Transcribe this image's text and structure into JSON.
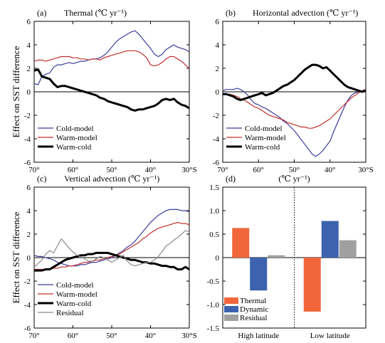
{
  "ylabel": "Effect on SST difference",
  "chart_data": [
    {
      "type": "line",
      "panel": "(a)",
      "title": "Thermal (℃ yr⁻¹)",
      "xlim": [
        70,
        30
      ],
      "ylim": [
        -6,
        6
      ],
      "yticks": [
        -6,
        -4,
        -2,
        0,
        2,
        4,
        6
      ],
      "xticks": [
        70,
        60,
        50,
        40,
        30
      ],
      "xticklabels": [
        "70°",
        "60°",
        "50°",
        "40°",
        "30°S"
      ],
      "legend_position": "lower-left",
      "series": [
        {
          "name": "Cold-model",
          "color": "#3b3b9a",
          "width": 1.2,
          "x": [
            70,
            69,
            68,
            67,
            66,
            65,
            64,
            63,
            62,
            61,
            60,
            59,
            58,
            57,
            56,
            55,
            54,
            53,
            52,
            51,
            50,
            49,
            48,
            47,
            46,
            45,
            44,
            43,
            42,
            41,
            40,
            39,
            38,
            37,
            36,
            35,
            34,
            33,
            32,
            31,
            30
          ],
          "y": [
            0.7,
            0.6,
            1.3,
            1.5,
            1.6,
            2.1,
            2.3,
            2.3,
            2.4,
            2.5,
            2.4,
            2.5,
            2.6,
            2.6,
            2.7,
            2.8,
            2.8,
            2.9,
            3.1,
            3.4,
            3.8,
            4.2,
            4.5,
            4.7,
            4.9,
            5.1,
            5.2,
            4.9,
            4.5,
            4.1,
            3.7,
            3.2,
            3.0,
            3.2,
            3.6,
            3.8,
            4.0,
            3.8,
            3.7,
            3.6,
            3.4
          ]
        },
        {
          "name": "Warm-model",
          "color": "#c0302b",
          "width": 1.2,
          "x": [
            70,
            69,
            68,
            67,
            66,
            65,
            64,
            63,
            62,
            61,
            60,
            59,
            58,
            57,
            56,
            55,
            54,
            53,
            52,
            51,
            50,
            49,
            48,
            47,
            46,
            45,
            44,
            43,
            42,
            41,
            40,
            39,
            38,
            37,
            36,
            35,
            34,
            33,
            32,
            31,
            30
          ],
          "y": [
            2.6,
            2.7,
            2.7,
            2.6,
            2.7,
            2.8,
            2.9,
            3.0,
            3.0,
            3.0,
            2.9,
            2.9,
            2.8,
            2.8,
            2.7,
            2.8,
            2.8,
            2.7,
            2.9,
            3.0,
            3.1,
            3.2,
            3.3,
            3.4,
            3.5,
            3.5,
            3.5,
            3.4,
            3.2,
            2.9,
            2.3,
            2.2,
            2.3,
            2.5,
            2.8,
            3.0,
            3.0,
            2.8,
            2.6,
            2.3,
            2.0
          ]
        },
        {
          "name": "Warm-cold",
          "color": "#000000",
          "width": 3,
          "x": [
            70,
            69,
            68,
            67,
            66,
            65,
            64,
            63,
            62,
            61,
            60,
            59,
            58,
            57,
            56,
            55,
            54,
            53,
            52,
            51,
            50,
            49,
            48,
            47,
            46,
            45,
            44,
            43,
            42,
            41,
            40,
            39,
            38,
            37,
            36,
            35,
            34,
            33,
            32,
            31,
            30
          ],
          "y": [
            1.8,
            1.9,
            1.3,
            1.2,
            1.1,
            0.7,
            0.4,
            0.5,
            0.5,
            0.4,
            0.3,
            0.2,
            0.1,
            0.0,
            -0.1,
            -0.2,
            -0.3,
            -0.5,
            -0.6,
            -0.8,
            -0.9,
            -1.0,
            -1.1,
            -1.2,
            -1.3,
            -1.5,
            -1.6,
            -1.5,
            -1.5,
            -1.4,
            -1.3,
            -1.2,
            -1.0,
            -0.7,
            -0.6,
            -0.7,
            -0.6,
            -0.9,
            -1.1,
            -1.2,
            -1.4
          ]
        }
      ]
    },
    {
      "type": "line",
      "panel": "(b)",
      "title": "Horizontal advection (℃ yr⁻¹)",
      "xlim": [
        70,
        30
      ],
      "ylim": [
        -6,
        6
      ],
      "yticks": [
        -6,
        -4,
        -2,
        0,
        2,
        4,
        6
      ],
      "xticks": [
        70,
        60,
        50,
        40,
        30
      ],
      "xticklabels": [
        "70°",
        "60°",
        "50°",
        "40°",
        "30°S"
      ],
      "legend_position": "lower-left",
      "series": [
        {
          "name": "Cold-model",
          "color": "#3b3b9a",
          "width": 1.2,
          "x": [
            70,
            69,
            68,
            67,
            66,
            65,
            64,
            63,
            62,
            61,
            60,
            59,
            58,
            57,
            56,
            55,
            54,
            53,
            52,
            51,
            50,
            49,
            48,
            47,
            46,
            45,
            44,
            43,
            42,
            41,
            40,
            39,
            38,
            37,
            36,
            35,
            34,
            33,
            32,
            31,
            30
          ],
          "y": [
            0.1,
            0.2,
            0.2,
            0.2,
            0.3,
            0.2,
            0.0,
            -0.3,
            -0.7,
            -1.0,
            -1.1,
            -1.3,
            -1.4,
            -1.6,
            -1.8,
            -2.0,
            -2.2,
            -2.5,
            -2.7,
            -3.0,
            -3.3,
            -3.7,
            -4.1,
            -4.5,
            -4.9,
            -5.3,
            -5.5,
            -5.3,
            -5.0,
            -4.6,
            -4.2,
            -3.4,
            -2.7,
            -2.0,
            -1.3,
            -0.7,
            -0.3,
            -0.1,
            0.0,
            0.1,
            0.2
          ]
        },
        {
          "name": "Warm-model",
          "color": "#c0302b",
          "width": 1.2,
          "x": [
            70,
            69,
            68,
            67,
            66,
            65,
            64,
            63,
            62,
            61,
            60,
            59,
            58,
            57,
            56,
            55,
            54,
            53,
            52,
            51,
            50,
            49,
            48,
            47,
            46,
            45,
            44,
            43,
            42,
            41,
            40,
            39,
            38,
            37,
            36,
            35,
            34,
            33,
            32,
            31,
            30
          ],
          "y": [
            -0.2,
            -0.2,
            -0.2,
            -0.3,
            -0.4,
            -0.6,
            -0.7,
            -0.9,
            -1.1,
            -1.3,
            -1.4,
            -1.6,
            -1.8,
            -2.0,
            -2.1,
            -2.2,
            -2.3,
            -2.4,
            -2.6,
            -2.7,
            -2.8,
            -2.9,
            -3.0,
            -3.0,
            -3.1,
            -3.1,
            -3.0,
            -2.9,
            -2.7,
            -2.5,
            -2.3,
            -2.0,
            -1.7,
            -1.4,
            -1.1,
            -0.8,
            -0.5,
            -0.3,
            -0.1,
            0.1,
            0.2
          ]
        },
        {
          "name": "Warm-cold",
          "color": "#000000",
          "width": 3,
          "x": [
            70,
            69,
            68,
            67,
            66,
            65,
            64,
            63,
            62,
            61,
            60,
            59,
            58,
            57,
            56,
            55,
            54,
            53,
            52,
            51,
            50,
            49,
            48,
            47,
            46,
            45,
            44,
            43,
            42,
            41,
            40,
            39,
            38,
            37,
            36,
            35,
            34,
            33,
            32,
            31,
            30
          ],
          "y": [
            -0.2,
            -0.2,
            -0.3,
            -0.4,
            -0.6,
            -0.7,
            -0.6,
            -0.5,
            -0.4,
            -0.3,
            -0.2,
            -0.1,
            -0.3,
            -0.2,
            -0.1,
            0.1,
            0.3,
            0.5,
            0.6,
            0.8,
            1.0,
            1.3,
            1.6,
            1.9,
            2.1,
            2.3,
            2.3,
            2.2,
            2.0,
            2.1,
            1.8,
            1.5,
            1.2,
            0.9,
            0.6,
            0.4,
            0.3,
            0.2,
            0.1,
            0.0,
            0.1
          ]
        }
      ]
    },
    {
      "type": "line",
      "panel": "(c)",
      "title": "Vertical advection (℃ yr⁻¹)",
      "xlim": [
        70,
        30
      ],
      "ylim": [
        -6,
        6
      ],
      "yticks": [
        -6,
        -4,
        -2,
        0,
        2,
        4,
        6
      ],
      "xticks": [
        70,
        60,
        50,
        40,
        30
      ],
      "xticklabels": [
        "70°",
        "60°",
        "50°",
        "40°",
        "30°S"
      ],
      "legend_position": "lower-left",
      "series": [
        {
          "name": "Cold-model",
          "color": "#3b3b9a",
          "width": 1.2,
          "x": [
            70,
            69,
            68,
            67,
            66,
            65,
            64,
            63,
            62,
            61,
            60,
            59,
            58,
            57,
            56,
            55,
            54,
            53,
            52,
            51,
            50,
            49,
            48,
            47,
            46,
            45,
            44,
            43,
            42,
            41,
            40,
            39,
            38,
            37,
            36,
            35,
            34,
            33,
            32,
            31,
            30
          ],
          "y": [
            0.2,
            0.1,
            0.1,
            0.0,
            -0.1,
            -0.2,
            -0.4,
            -0.5,
            -0.6,
            -0.7,
            -0.7,
            -0.7,
            -0.6,
            -0.6,
            -0.5,
            -0.4,
            -0.4,
            -0.3,
            -0.2,
            -0.1,
            0.0,
            0.2,
            0.4,
            0.6,
            0.9,
            1.1,
            1.4,
            1.8,
            2.2,
            2.6,
            3.0,
            3.3,
            3.6,
            3.8,
            4.0,
            4.1,
            4.1,
            4.1,
            4.0,
            4.0,
            3.9
          ]
        },
        {
          "name": "Warm-model",
          "color": "#c0302b",
          "width": 1.2,
          "x": [
            70,
            69,
            68,
            67,
            66,
            65,
            64,
            63,
            62,
            61,
            60,
            59,
            58,
            57,
            56,
            55,
            54,
            53,
            52,
            51,
            50,
            49,
            48,
            47,
            46,
            45,
            44,
            43,
            42,
            41,
            40,
            39,
            38,
            37,
            36,
            35,
            34,
            33,
            32,
            31,
            30
          ],
          "y": [
            -1.0,
            -1.0,
            -1.0,
            -1.0,
            -1.0,
            -0.9,
            -0.9,
            -0.8,
            -0.8,
            -0.7,
            -0.7,
            -0.6,
            -0.5,
            -0.4,
            -0.4,
            -0.3,
            -0.2,
            -0.2,
            -0.1,
            0.0,
            0.1,
            0.2,
            0.3,
            0.5,
            0.7,
            0.9,
            1.1,
            1.3,
            1.6,
            1.8,
            2.1,
            2.3,
            2.5,
            2.6,
            2.7,
            2.8,
            2.9,
            3.0,
            2.9,
            2.9,
            2.8
          ]
        },
        {
          "name": "Warm-cold",
          "color": "#000000",
          "width": 3,
          "x": [
            70,
            69,
            68,
            67,
            66,
            65,
            64,
            63,
            62,
            61,
            60,
            59,
            58,
            57,
            56,
            55,
            54,
            53,
            52,
            51,
            50,
            49,
            48,
            47,
            46,
            45,
            44,
            43,
            42,
            41,
            40,
            39,
            38,
            37,
            36,
            35,
            34,
            33,
            32,
            31,
            30
          ],
          "y": [
            -1.1,
            -1.1,
            -1.1,
            -1.0,
            -1.0,
            -0.8,
            -0.6,
            -0.4,
            -0.2,
            -0.1,
            0.0,
            0.1,
            0.2,
            0.2,
            0.3,
            0.3,
            0.4,
            0.4,
            0.4,
            0.4,
            0.3,
            0.2,
            0.1,
            0.0,
            -0.1,
            -0.2,
            -0.2,
            -0.3,
            -0.4,
            -0.4,
            -0.5,
            -0.5,
            -0.6,
            -0.7,
            -0.7,
            -0.8,
            -0.8,
            -1.0,
            -1.0,
            -0.8,
            -1.0
          ]
        },
        {
          "name": "Residual",
          "color": "#8a8a8a",
          "width": 1.2,
          "x": [
            70,
            69,
            68,
            67,
            66,
            65,
            64,
            63,
            62,
            61,
            60,
            59,
            58,
            57,
            56,
            55,
            54,
            53,
            52,
            51,
            50,
            49,
            48,
            47,
            46,
            45,
            44,
            43,
            42,
            41,
            40,
            39,
            38,
            37,
            36,
            35,
            34,
            33,
            32,
            31,
            30
          ],
          "y": [
            -0.8,
            -0.5,
            -0.2,
            0.3,
            0.6,
            0.4,
            1.0,
            1.6,
            1.2,
            0.8,
            0.5,
            0.2,
            0.1,
            -0.1,
            -0.3,
            -0.3,
            -0.1,
            0.1,
            0.0,
            -0.2,
            -0.4,
            -0.2,
            0.0,
            0.2,
            -0.3,
            -0.6,
            -0.7,
            -0.6,
            -0.5,
            -0.4,
            -0.4,
            -0.2,
            0.1,
            0.5,
            1.0,
            1.2,
            1.5,
            1.7,
            2.0,
            2.3,
            2.2
          ]
        }
      ]
    },
    {
      "type": "bar",
      "panel": "(d)",
      "title": "(℃ yr⁻¹)",
      "ylim": [
        -1.5,
        1.5
      ],
      "yticks": [
        -1.5,
        -1.0,
        -0.5,
        0,
        0.5,
        1.0,
        1.5
      ],
      "yticklabels": [
        "-1.5",
        "-1.0",
        "-0.5",
        "0",
        "0.5",
        "1.0",
        "1.5"
      ],
      "categories": [
        "High latitude",
        "Low latitude"
      ],
      "legend_position": "lower-left",
      "series": [
        {
          "name": "Thermal",
          "color": "#f0663a",
          "values": [
            0.63,
            -1.15
          ]
        },
        {
          "name": "Dynamic",
          "color": "#3d62ae",
          "values": [
            -0.7,
            0.78
          ]
        },
        {
          "name": "Residual",
          "color": "#a0a0a0",
          "values": [
            0.05,
            0.37
          ]
        }
      ]
    }
  ]
}
